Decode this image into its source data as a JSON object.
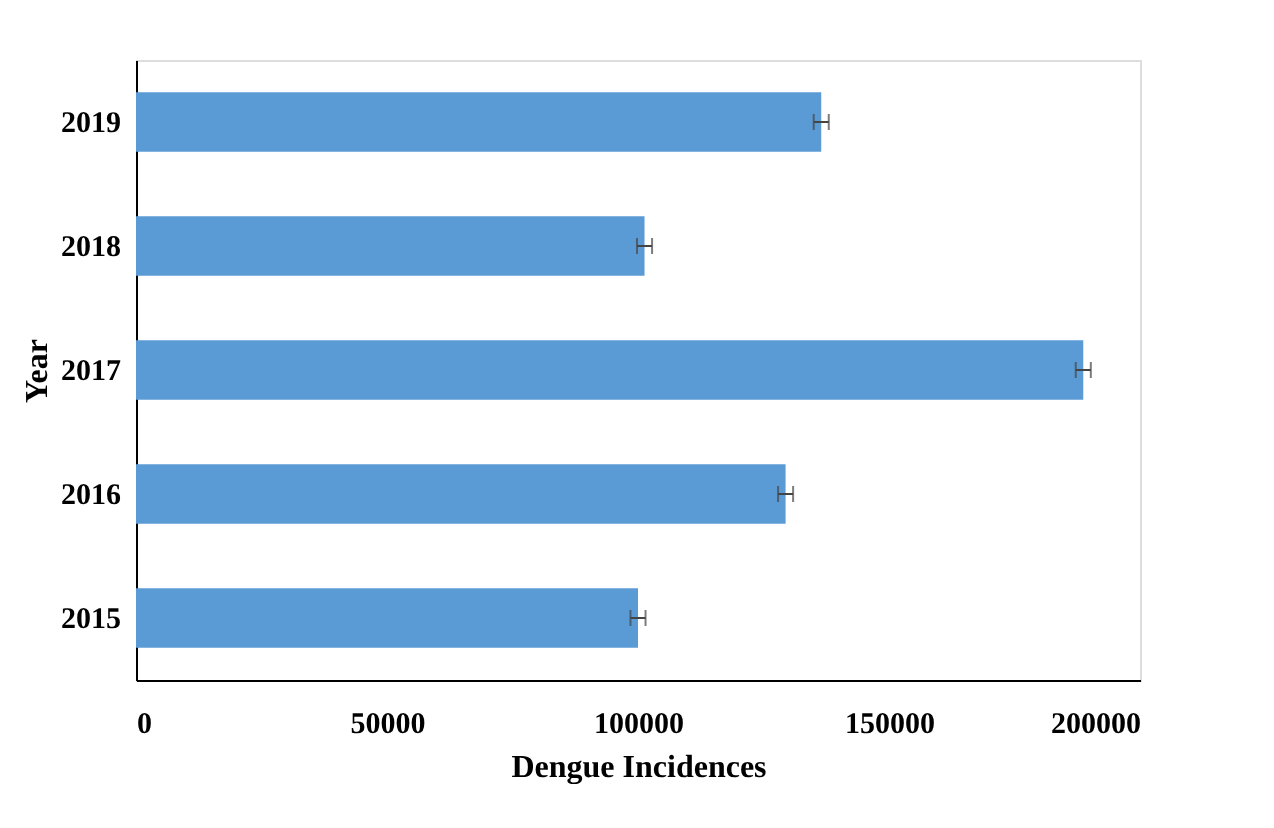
{
  "chart_data": {
    "type": "bar",
    "orientation": "horizontal",
    "xlabel": "Dengue Incidences",
    "ylabel": "Year",
    "categories": [
      "2019",
      "2018",
      "2017",
      "2016",
      "2015"
    ],
    "values": [
      136500,
      101300,
      188700,
      129400,
      100000
    ],
    "errors": [
      1500,
      1500,
      1500,
      1500,
      1500
    ],
    "color": "#5b9bd5",
    "xlim": [
      0,
      200000
    ],
    "xticks": [
      0,
      50000,
      100000,
      150000,
      200000
    ],
    "grid": false
  }
}
